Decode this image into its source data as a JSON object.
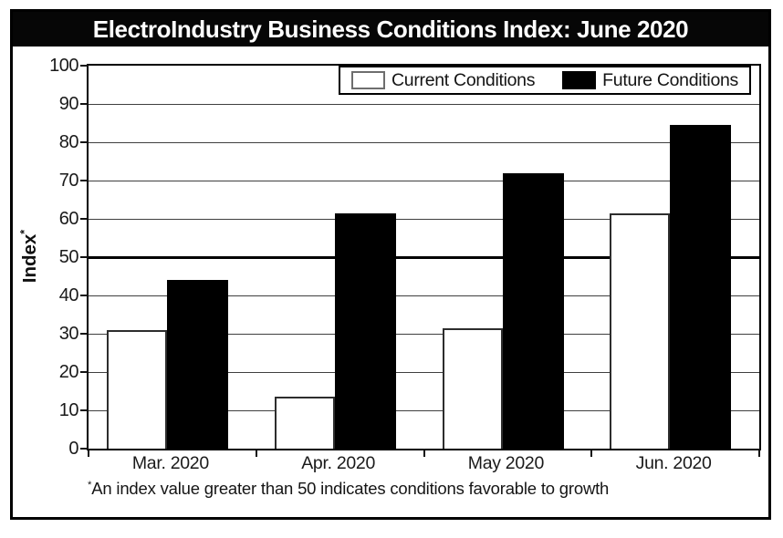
{
  "title": "ElectroIndustry Business Conditions Index: June 2020",
  "y_axis": {
    "title": "Index",
    "marker": "*"
  },
  "footnote": {
    "marker": "*",
    "text": "An index value greater than 50 indicates conditions favorable to growth"
  },
  "legend": {
    "position": "top-right"
  },
  "colors": {
    "title_bg": "#060606",
    "title_text": "#ffffff",
    "current_bar": "#ffffff",
    "future_bar": "#000000",
    "grid": "#3f3f3f",
    "reference_line": "#000000",
    "text": "#1a1a1a"
  },
  "chart_data": {
    "type": "bar",
    "title": "ElectroIndustry Business Conditions Index: June 2020",
    "categories": [
      "Mar. 2020",
      "Apr. 2020",
      "May 2020",
      "Jun. 2020"
    ],
    "series": [
      {
        "name": "Current Conditions",
        "color": "#ffffff",
        "values": [
          31,
          13.5,
          31.5,
          61.5
        ]
      },
      {
        "name": "Future Conditions",
        "color": "#000000",
        "values": [
          44,
          61.5,
          72,
          84.5
        ]
      }
    ],
    "xlabel": "",
    "ylabel": "Index*",
    "ylim": [
      0,
      100
    ],
    "ytick_step": 10,
    "reference_line": 50,
    "grid": true,
    "legend_position": "top-right"
  }
}
